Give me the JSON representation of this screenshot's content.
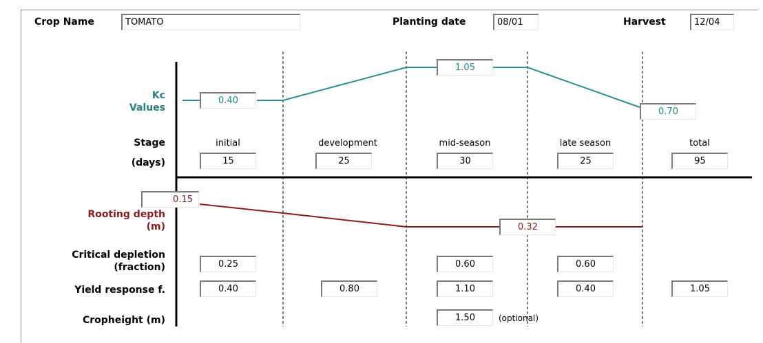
{
  "header": {
    "crop_name_label": "Crop Name",
    "crop_name_value": "TOMATO",
    "planting_label": "Planting date",
    "planting_value": "08/01",
    "harvest_label": "Harvest",
    "harvest_value": "12/04"
  },
  "kc": {
    "label_line1": "Kc",
    "label_line2": "Values",
    "initial": "0.40",
    "mid": "1.05",
    "end": "0.70"
  },
  "stage": {
    "label_line1": "Stage",
    "label_line2": "(days)",
    "headers": [
      "initial",
      "development",
      "mid-season",
      "late season",
      "total"
    ],
    "days": [
      "15",
      "25",
      "30",
      "25",
      "95"
    ]
  },
  "rooting": {
    "label_line1": "Rooting depth",
    "label_line2": "(m)",
    "min": "0.15",
    "max": "0.32"
  },
  "depletion": {
    "label_line1": "Critical depletion",
    "label_line2": "(fraction)",
    "initial": "0.25",
    "mid": "0.60",
    "late": "0.60"
  },
  "yield": {
    "label": "Yield response f.",
    "values": [
      "0.40",
      "0.80",
      "1.10",
      "0.40",
      "1.05"
    ]
  },
  "cropheight": {
    "label": "Cropheight (m)",
    "value": "1.50",
    "note": "(optional)"
  },
  "colors": {
    "kc_line": "#2a8f90",
    "root_line": "#8b1a1a"
  }
}
